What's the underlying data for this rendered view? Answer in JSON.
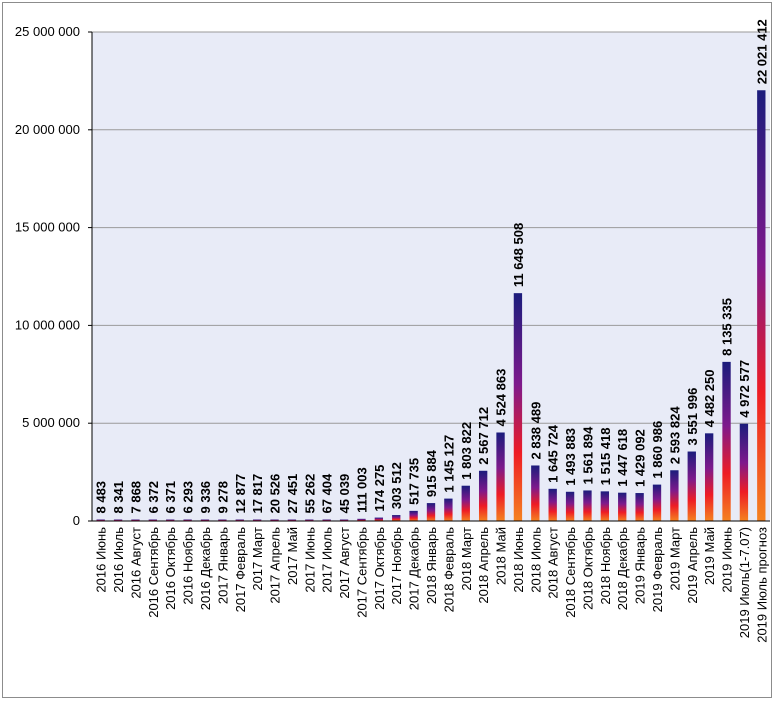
{
  "chart_data": {
    "type": "bar",
    "title": "",
    "xlabel": "",
    "ylabel": "",
    "ylim": [
      0,
      25000000
    ],
    "yticks": [
      0,
      5000000,
      10000000,
      15000000,
      20000000,
      25000000
    ],
    "ytick_labels": [
      "0",
      "5 000 000",
      "10 000 000",
      "15 000 000",
      "20 000 000",
      "25 000 000"
    ],
    "grid": true,
    "legend": "none",
    "plot_background": "#e8ebf7",
    "bar_gradient": [
      "#f58220",
      "#ee1c25",
      "#7e1a8c",
      "#1b1c7c"
    ],
    "categories": [
      "2016 Июнь",
      "2016 Июль",
      "2016 Август",
      "2016 Сентябрь",
      "2016 Октябрь",
      "2016 Ноябрь",
      "2016 Декабрь",
      "2017 Январь",
      "2017 Февраль",
      "2017 Март",
      "2017 Апрель",
      "2017 Май",
      "2017 Июнь",
      "2017 Июль",
      "2017 Август",
      "2017 Сентябрь",
      "2017 Октябрь",
      "2017 Ноябрь",
      "2017 Декабрь",
      "2018 Январь",
      "2018 Февраль",
      "2018 Март",
      "2018 Апрель",
      "2018 Май",
      "2018 Июнь",
      "2018 Июль",
      "2018 Август",
      "2018 Сентябрь",
      "2018 Октябрь",
      "2018 Ноябрь",
      "2018 Декабрь",
      "2019 Январь",
      "2019 Февраль",
      "2019 Март",
      "2019 Апрель",
      "2019 Май",
      "2019 Июнь",
      "2019 Июль(1-7.07)",
      "2019 Июль прогноз"
    ],
    "values": [
      8483,
      8341,
      7868,
      6372,
      6371,
      6293,
      9336,
      9278,
      12877,
      17817,
      20526,
      27451,
      55262,
      67404,
      45039,
      111003,
      174275,
      303512,
      517735,
      915884,
      1145127,
      1803822,
      2567712,
      4524863,
      11648508,
      2838489,
      1645724,
      1493883,
      1561894,
      1515418,
      1447618,
      1429092,
      1860986,
      2593824,
      3551996,
      4482250,
      8135335,
      4972577,
      22021412
    ],
    "data_labels": [
      "8 483",
      "8 341",
      "7 868",
      "6 372",
      "6 371",
      "6 293",
      "9 336",
      "9 278",
      "12 877",
      "17 817",
      "20 526",
      "27 451",
      "55 262",
      "67 404",
      "45 039",
      "111 003",
      "174 275",
      "303 512",
      "517 735",
      "915 884",
      "1 145 127",
      "1 803 822",
      "2 567 712",
      "4 524 863",
      "11 648 508",
      "2 838 489",
      "1 645 724",
      "1 493 883",
      "1 561 894",
      "1 515 418",
      "1 447 618",
      "1 429 092",
      "1 860 986",
      "2 593 824",
      "3 551 996",
      "4 482 250",
      "8 135 335",
      "4 972 577",
      "22 021 412"
    ]
  }
}
